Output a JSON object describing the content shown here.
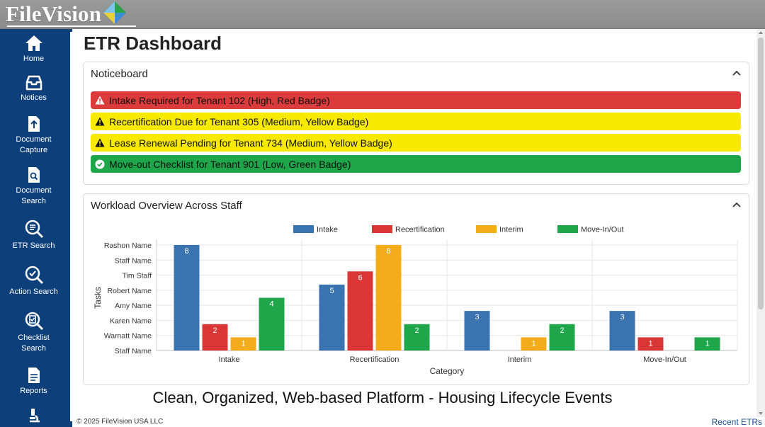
{
  "brand": {
    "name": "FileVision"
  },
  "sidebar": {
    "items": [
      {
        "label": "Home",
        "icon": "home-icon"
      },
      {
        "label": "Notices",
        "icon": "inbox-icon"
      },
      {
        "label": "Document Capture",
        "line1": "Document",
        "line2": "Capture",
        "icon": "upload-file-icon"
      },
      {
        "label": "Document Search",
        "line1": "Document",
        "line2": "Search",
        "icon": "file-search-icon"
      },
      {
        "label": "ETR Search",
        "icon": "search-list-icon"
      },
      {
        "label": "Action Search",
        "icon": "search-icon"
      },
      {
        "label": "Checklist Search",
        "line1": "Checklist",
        "line2": "Search",
        "icon": "checklist-search-icon"
      },
      {
        "label": "Reports",
        "icon": "report-icon"
      },
      {
        "label": "",
        "icon": "microscope-icon"
      }
    ]
  },
  "page": {
    "title": "ETR Dashboard"
  },
  "noticeboard": {
    "title": "Noticeboard",
    "notices": [
      {
        "text": "Intake Required for Tenant 102 (High, Red Badge)",
        "color": "#dc3b3b",
        "icon": "warning-icon"
      },
      {
        "text": "Recertification Due for Tenant 305 (Medium, Yellow Badge)",
        "color": "#f7ea00",
        "icon": "warning-icon"
      },
      {
        "text": "Lease Renewal Pending for Tenant 734 (Medium, Yellow Badge)",
        "color": "#f7ea00",
        "icon": "warning-icon"
      },
      {
        "text": "Move-out Checklist for Tenant 901 (Low, Green Badge)",
        "color": "#1fa64a",
        "icon": "check-circle-icon"
      }
    ]
  },
  "workload": {
    "title": "Workload Overview Across Staff"
  },
  "chart_data": {
    "type": "bar",
    "title": "",
    "xlabel": "Category",
    "ylabel": "Tasks",
    "categories": [
      "Intake",
      "Recertification",
      "Interim",
      "Move-In/Out"
    ],
    "y_tick_labels": [
      "Rashon Name",
      "Staff Name",
      "Tim Staff",
      "Robert Name",
      "Amy Name",
      "Karen Name",
      "Warnatt Name",
      "Staff Name"
    ],
    "ylim": [
      0,
      8
    ],
    "legend_position": "top-center",
    "grid": true,
    "series": [
      {
        "name": "Intake",
        "color": "#3a73b0",
        "values": [
          8,
          5,
          3,
          3
        ]
      },
      {
        "name": "Recertification",
        "color": "#d93636",
        "values": [
          2,
          6,
          0,
          1
        ]
      },
      {
        "name": "Interim",
        "color": "#f3ac1c",
        "values": [
          1,
          8,
          1,
          0
        ]
      },
      {
        "name": "Move-In/Out",
        "color": "#1fa64a",
        "values": [
          4,
          2,
          2,
          1
        ]
      }
    ]
  },
  "tagline": "Clean, Organized, Web-based Platform - Housing Lifecycle Events",
  "footer": {
    "copyright": "© 2025 FileVision USA LLC",
    "recent_link": "Recent ETRs"
  }
}
